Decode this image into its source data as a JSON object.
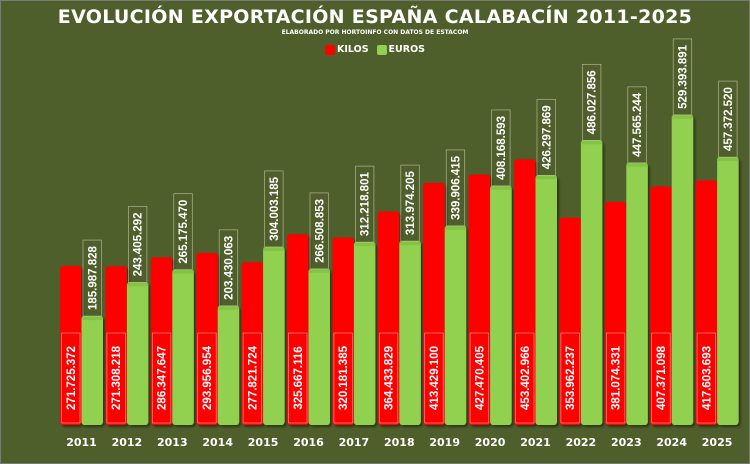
{
  "chart_data": {
    "type": "bar",
    "title": "EVOLUCIÓN EXPORTACIÓN ESPAÑA CALABACÍN 2011-2025",
    "subtitle": "ELABORADO POR HORTOINFO CON DATOS DE ESTACOM",
    "xlabel": "",
    "ylabel": "",
    "ylim": [
      0,
      700000000
    ],
    "grid": false,
    "legend_position": "top-center",
    "categories": [
      "2011",
      "2012",
      "2013",
      "2014",
      "2015",
      "2016",
      "2017",
      "2018",
      "2019",
      "2020",
      "2021",
      "2022",
      "2023",
      "2024",
      "2025"
    ],
    "series": [
      {
        "name": "KILOS",
        "color": "#ff0000",
        "values": [
          271725372,
          271308218,
          286347647,
          293956954,
          277821724,
          325667116,
          320181385,
          364433829,
          413429100,
          427470405,
          453402966,
          353962237,
          381074331,
          407371098,
          417603693
        ],
        "labels": [
          "271.725.372",
          "271.308.218",
          "286.347.647",
          "293.956.954",
          "277.821.724",
          "325.667.116",
          "320.181.385",
          "364.433.829",
          "413.429.100",
          "427.470.405",
          "453.402.966",
          "353.962.237",
          "381.074.331",
          "407.371.098",
          "417.603.693"
        ]
      },
      {
        "name": "EUROS",
        "color": "#92d050",
        "values": [
          185987828,
          243405292,
          265175470,
          203430063,
          304003185,
          266508853,
          312218801,
          313974205,
          339906415,
          408168593,
          426297869,
          486027856,
          447565244,
          529393891,
          457372520
        ],
        "labels": [
          "185.987.828",
          "243.405.292",
          "265.175.470",
          "203.430.063",
          "304.003.185",
          "266.508.853",
          "312.218.801",
          "313.974.205",
          "339.906.415",
          "408.168.593",
          "426.297.869",
          "486.027.856",
          "447.565.244",
          "529.393.891",
          "457.372.520"
        ]
      }
    ]
  },
  "legend": {
    "kilos_label": "KILOS",
    "euros_label": "EUROS",
    "kilos_color": "#ff0000",
    "euros_color": "#92d050"
  },
  "background_color": "#4f5f2b"
}
